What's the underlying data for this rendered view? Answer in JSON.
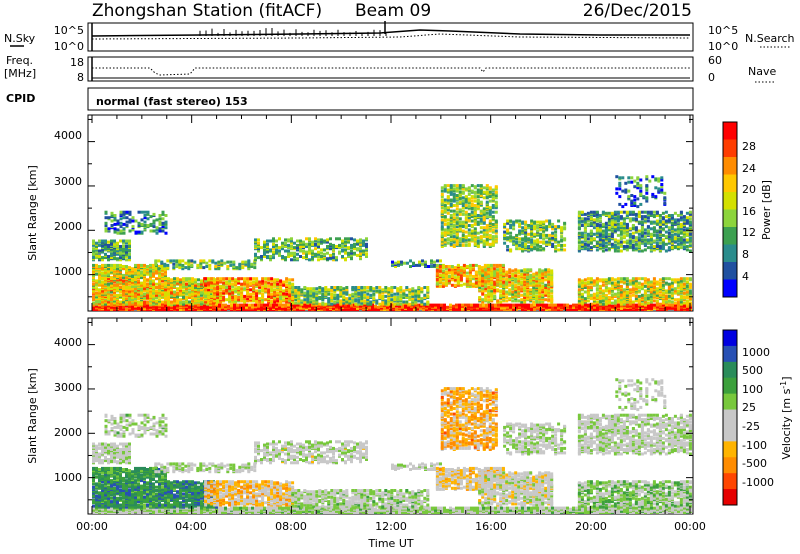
{
  "header": {
    "station": "Zhongshan Station (fitACF)",
    "beam": "Beam 09",
    "date": "26/Dec/2015"
  },
  "strip": {
    "nsky_label": "N.Sky",
    "nsky_ticks": [
      "10^5",
      "10^0"
    ],
    "nsearch_label": "N.Search",
    "nsearch_ticks": [
      "10^5",
      "10^0"
    ],
    "freq_label": [
      "Freq.",
      "[MHz]"
    ],
    "freq_ticks": [
      "18",
      "8"
    ],
    "nave_label": "Nave",
    "nave_ticks": [
      "60",
      "0"
    ],
    "cpid_label": "CPID",
    "cpid_text": "normal (fast stereo) 153"
  },
  "panels": {
    "ylabel": "Slant Range [km]",
    "yticks": [
      "4000",
      "3000",
      "2000",
      "1000"
    ],
    "xticks": [
      "00:00",
      "04:00",
      "08:00",
      "12:00",
      "16:00",
      "20:00",
      "00:00"
    ],
    "xlabel": "Time UT"
  },
  "power_scale": {
    "label": "Power [dB]",
    "ticks": [
      "28",
      "24",
      "20",
      "16",
      "12",
      "8",
      "4"
    ],
    "colors": [
      "#ff0000",
      "#ff3d00",
      "#ff8c00",
      "#ffc800",
      "#d4e000",
      "#8cd43c",
      "#3ca050",
      "#2a8c8c",
      "#2050a0",
      "#0000ff"
    ]
  },
  "velocity_scale": {
    "label": "Velocity [m s",
    "label_sup": "-1",
    "label_end": "]",
    "ticks": [
      "1000",
      "500",
      "100",
      "25",
      "-25",
      "-100",
      "-500",
      "-1000"
    ],
    "colors": [
      "#0000e0",
      "#2850b4",
      "#2a8c5a",
      "#3ca03c",
      "#78c83c",
      "#c8c8c8",
      "#c8c8c8",
      "#ffb400",
      "#ff8c00",
      "#ff4600",
      "#e60000"
    ]
  },
  "chart_data": {
    "type": "heatmap",
    "x_range_hours": [
      0,
      24
    ],
    "y_range_km": [
      180,
      4600
    ],
    "power_range_db": [
      0,
      30
    ],
    "velocity_range": [
      -1000,
      1000
    ],
    "scatter_regions": [
      {
        "t": [
          0.0,
          24.0
        ],
        "r": [
          180,
          300
        ],
        "power": 27,
        "velocity": 60,
        "density": 0.95
      },
      {
        "t": [
          0.0,
          5.0
        ],
        "r": [
          300,
          900
        ],
        "power": 18,
        "velocity": 500,
        "density": 0.7
      },
      {
        "t": [
          0.0,
          3.0
        ],
        "r": [
          900,
          1200
        ],
        "power": 17,
        "velocity": 400,
        "density": 0.7
      },
      {
        "t": [
          0.0,
          1.5
        ],
        "r": [
          1300,
          1750
        ],
        "power": 10,
        "velocity": -20,
        "density": 0.6
      },
      {
        "t": [
          0.5,
          3.0
        ],
        "r": [
          1900,
          2400
        ],
        "power": 8,
        "velocity": 30,
        "density": 0.3
      },
      {
        "t": [
          2.5,
          6.5
        ],
        "r": [
          1100,
          1300
        ],
        "power": 12,
        "velocity": 20,
        "density": 0.45
      },
      {
        "t": [
          4.5,
          8.0
        ],
        "r": [
          350,
          900
        ],
        "power": 21,
        "velocity": -300,
        "density": 0.6
      },
      {
        "t": [
          6.5,
          11.0
        ],
        "r": [
          1300,
          1800
        ],
        "power": 12,
        "velocity": -30,
        "density": 0.4
      },
      {
        "t": [
          8.0,
          13.5
        ],
        "r": [
          300,
          700
        ],
        "power": 13,
        "velocity": 60,
        "density": 0.55
      },
      {
        "t": [
          12.0,
          14.0
        ],
        "r": [
          1150,
          1300
        ],
        "power": 9,
        "velocity": 30,
        "density": 0.3
      },
      {
        "t": [
          13.8,
          16.5
        ],
        "r": [
          700,
          1200
        ],
        "power": 20,
        "velocity": -250,
        "density": 0.55
      },
      {
        "t": [
          14.0,
          16.2
        ],
        "r": [
          1600,
          3000
        ],
        "power": 14,
        "velocity": -400,
        "density": 0.5
      },
      {
        "t": [
          15.5,
          18.5
        ],
        "r": [
          350,
          1100
        ],
        "power": 18,
        "velocity": -80,
        "density": 0.6
      },
      {
        "t": [
          16.5,
          19.0
        ],
        "r": [
          1500,
          2200
        ],
        "power": 12,
        "velocity": 0,
        "density": 0.4
      },
      {
        "t": [
          19.5,
          24.0
        ],
        "r": [
          300,
          900
        ],
        "power": 17,
        "velocity": 150,
        "density": 0.55
      },
      {
        "t": [
          19.5,
          24.0
        ],
        "r": [
          1500,
          2400
        ],
        "power": 10,
        "velocity": 0,
        "density": 0.5
      },
      {
        "t": [
          21.0,
          23.0
        ],
        "r": [
          2500,
          3200
        ],
        "power": 7,
        "velocity": -30,
        "density": 0.2
      }
    ]
  }
}
